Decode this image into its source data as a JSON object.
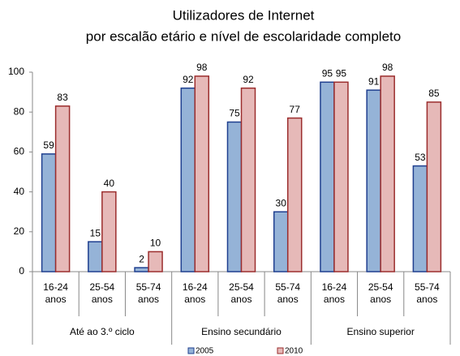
{
  "chart_data": {
    "type": "bar",
    "title": "Utilizadores de Internet",
    "subtitle": "por escalão etário e nível de escolaridade completo",
    "category_groups": [
      {
        "name": "Até ao 3.º ciclo",
        "categories": [
          [
            "16-24",
            "anos"
          ],
          [
            "25-54",
            "anos"
          ],
          [
            "55-74",
            "anos"
          ]
        ]
      },
      {
        "name": "Ensino secundário",
        "categories": [
          [
            "16-24",
            "anos"
          ],
          [
            "25-54",
            "anos"
          ],
          [
            "55-74",
            "anos"
          ]
        ]
      },
      {
        "name": "Ensino superior",
        "categories": [
          [
            "16-24",
            "anos"
          ],
          [
            "25-54",
            "anos"
          ],
          [
            "55-74",
            "anos"
          ]
        ]
      }
    ],
    "series": [
      {
        "name": "2005",
        "color": "#95b3d7",
        "border": "#1f3f8f",
        "values": [
          59,
          15,
          2,
          92,
          75,
          30,
          95,
          91,
          53
        ]
      },
      {
        "name": "2010",
        "color": "#e6b9b8",
        "border": "#9b2d2d",
        "values": [
          83,
          40,
          10,
          98,
          92,
          77,
          95,
          98,
          85
        ]
      }
    ],
    "ylim": [
      0,
      100
    ],
    "yticks": [
      0,
      20,
      40,
      60,
      80,
      100
    ],
    "grid": false
  }
}
